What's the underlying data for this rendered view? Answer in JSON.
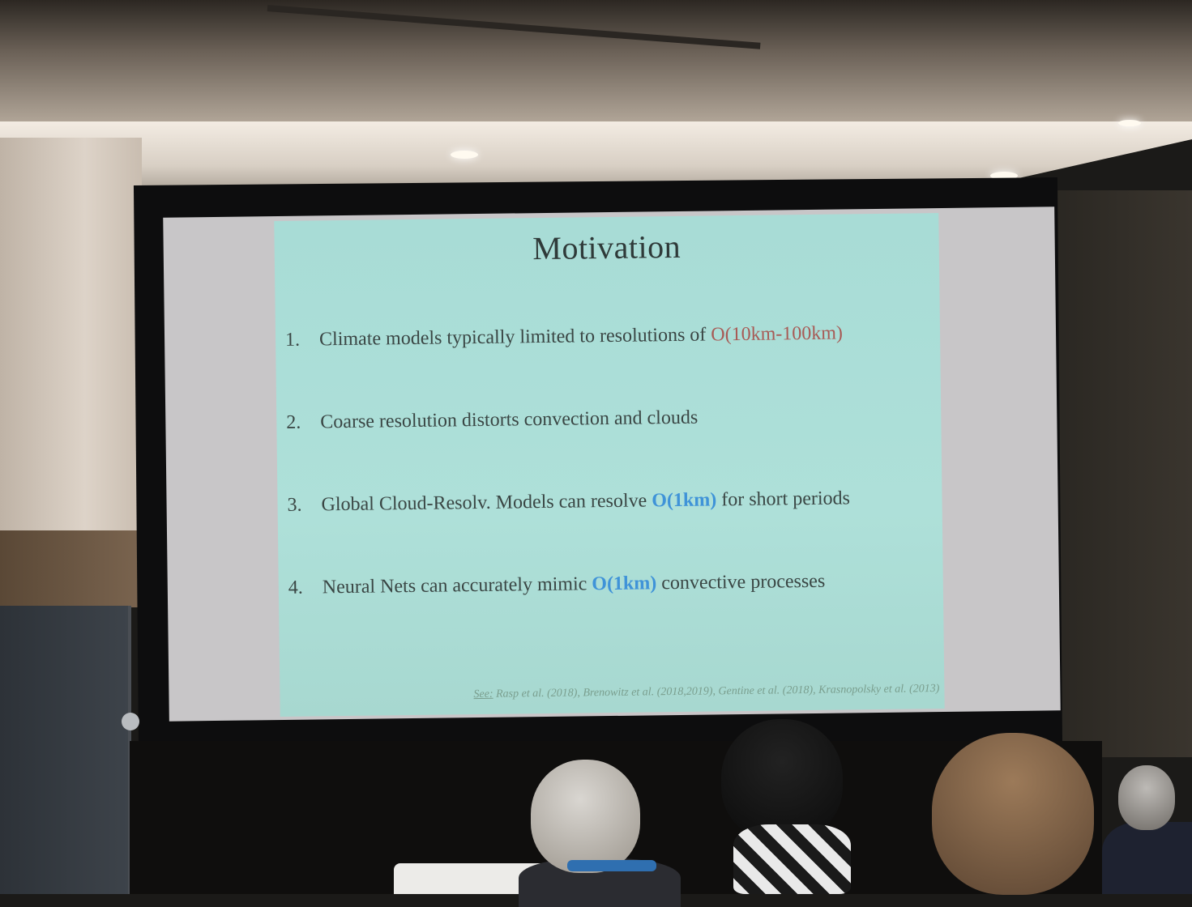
{
  "slide": {
    "title": "Motivation",
    "items": [
      {
        "num": "1.",
        "text": "Climate models typically limited to resolutions of ",
        "highlight": "O(10km-100km)",
        "after": ""
      },
      {
        "num": "2.",
        "text": "Coarse resolution distorts convection and clouds",
        "highlight": "",
        "after": ""
      },
      {
        "num": "3.",
        "text": "Global Cloud-Resolv. Models can resolve ",
        "highlight": "O(1km)",
        "after": " for short periods"
      },
      {
        "num": "4.",
        "text": "Neural Nets can accurately mimic ",
        "highlight": "O(1km)",
        "after": " convective processes"
      }
    ],
    "references_prefix": "See:",
    "references": " Rasp et al. (2018), Brenowitz et al. (2018,2019), Gentine et al. (2018), Krasnopolsky et al. (2013)"
  },
  "colors": {
    "slide_background": "#aee0d9",
    "highlight_red": "#a85a55",
    "highlight_blue": "#3f93d8"
  }
}
